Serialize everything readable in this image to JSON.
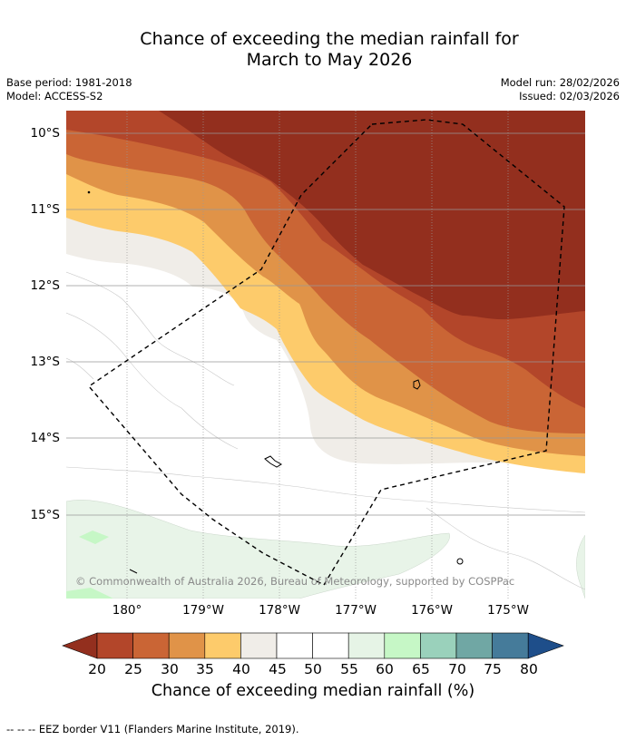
{
  "title": {
    "line1": "Chance of exceeding the median rainfall for",
    "line2": "March to May 2026"
  },
  "meta": {
    "base_period": "Base period: 1981-2018",
    "model": "Model: ACCESS-S2",
    "model_run": "Model run: 28/02/2026",
    "issued": "Issued: 02/03/2026"
  },
  "map": {
    "lat_labels": [
      "10°S",
      "11°S",
      "12°S",
      "13°S",
      "14°S",
      "15°S"
    ],
    "lon_labels": [
      "180°",
      "179°W",
      "178°W",
      "177°W",
      "176°W",
      "175°W"
    ],
    "copyright": "© Commonwealth of Australia 2026, Bureau of Meteorology, supported by COSPPac"
  },
  "colorbar": {
    "ticks": [
      "20",
      "25",
      "30",
      "35",
      "40",
      "45",
      "50",
      "55",
      "60",
      "65",
      "70",
      "75",
      "80"
    ],
    "colors": [
      "#932f1e",
      "#b3462a",
      "#ca6535",
      "#e09348",
      "#fdcb6b",
      "#f0ede8",
      "#ffffff",
      "#ffffff",
      "#e6f4e6",
      "#c6f7c6",
      "#9ad1bb",
      "#70a7a4",
      "#457b9a",
      "#1e4e8a"
    ],
    "label": "Chance of exceeding median rainfall (%)"
  },
  "legend": {
    "text": "--  --  -- EEZ border V11 (Flanders Marine Institute, 2019)."
  }
}
